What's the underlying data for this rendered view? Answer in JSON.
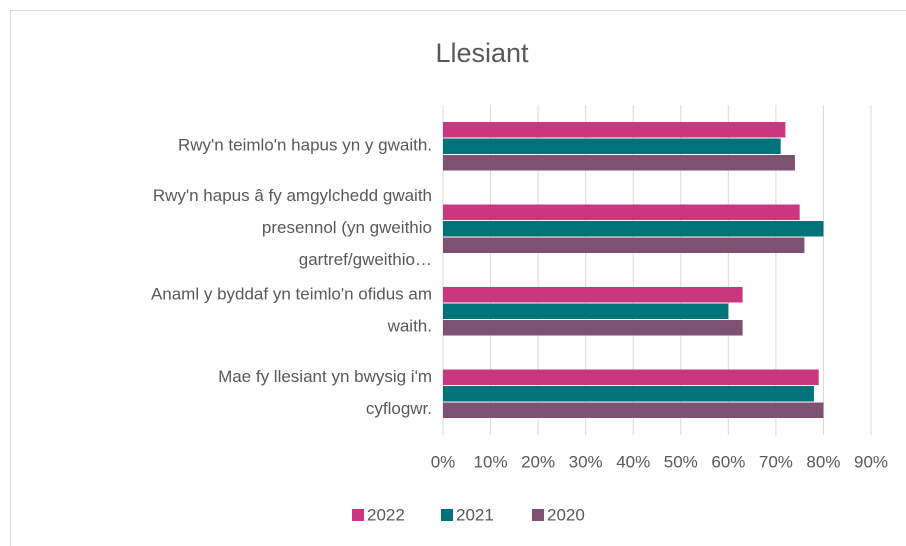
{
  "chart_data": {
    "type": "bar",
    "orientation": "horizontal",
    "title": "Llesiant",
    "categories": [
      "Rwy'n teimlo'n hapus yn y gwaith.",
      "Rwy'n hapus â fy amgylchedd gwaith presennol (yn gweithio gartref/gweithio…",
      "Anaml y byddaf yn teimlo'n ofidus am waith.",
      "Mae fy llesiant yn bwysig i'm cyflogwr."
    ],
    "series": [
      {
        "name": "2022",
        "color": "#c9387f",
        "values": [
          72,
          75,
          63,
          79
        ]
      },
      {
        "name": "2021",
        "color": "#00727a",
        "values": [
          71,
          80,
          60,
          78
        ]
      },
      {
        "name": "2020",
        "color": "#7c5270",
        "values": [
          74,
          76,
          63,
          80
        ]
      }
    ],
    "xlim": [
      0,
      90
    ],
    "xticks": [
      {
        "value": 0,
        "label": "0%"
      },
      {
        "value": 10,
        "label": "10%"
      },
      {
        "value": 20,
        "label": "20%"
      },
      {
        "value": 30,
        "label": "30%"
      },
      {
        "value": 40,
        "label": "40%"
      },
      {
        "value": 50,
        "label": "50%"
      },
      {
        "value": 60,
        "label": "60%"
      },
      {
        "value": 70,
        "label": "70%"
      },
      {
        "value": 80,
        "label": "80%"
      },
      {
        "value": 90,
        "label": "90%"
      }
    ],
    "grid": true,
    "legend": "bottom"
  }
}
